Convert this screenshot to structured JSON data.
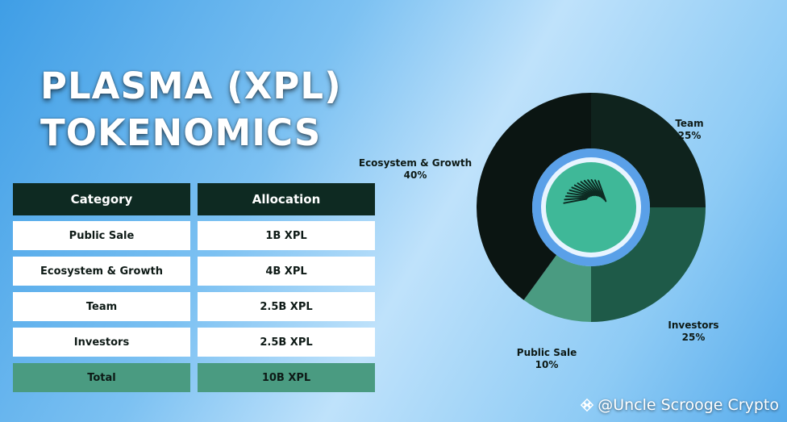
{
  "title": {
    "line1": "PLASMA (XPL)",
    "line2": "TOKENOMICS"
  },
  "table": {
    "headers": [
      "Category",
      "Allocation"
    ],
    "rows": [
      {
        "category": "Public Sale",
        "allocation": "1B XPL"
      },
      {
        "category": "Ecosystem & Growth",
        "allocation": "4B XPL"
      },
      {
        "category": "Team",
        "allocation": "2.5B XPL"
      },
      {
        "category": "Investors",
        "allocation": "2.5B XPL"
      }
    ],
    "total": {
      "category": "Total",
      "allocation": "10B XPL"
    }
  },
  "chart_data": {
    "type": "pie",
    "donut": true,
    "slices": [
      {
        "label": "Team",
        "value": 25,
        "display": "25%",
        "color": "#0f231d"
      },
      {
        "label": "Investors",
        "value": 25,
        "display": "25%",
        "color": "#1e5a48"
      },
      {
        "label": "Public Sale",
        "value": 10,
        "display": "10%",
        "color": "#4a9b81"
      },
      {
        "label": "Ecosystem & Growth",
        "value": 40,
        "display": "40%",
        "color": "#0b1512"
      }
    ],
    "center_color": "#3fb898",
    "ring_color": "#5aa0e8"
  },
  "watermark": {
    "text": "@Uncle Scrooge Crypto",
    "icon": "binance-diamond-icon"
  }
}
